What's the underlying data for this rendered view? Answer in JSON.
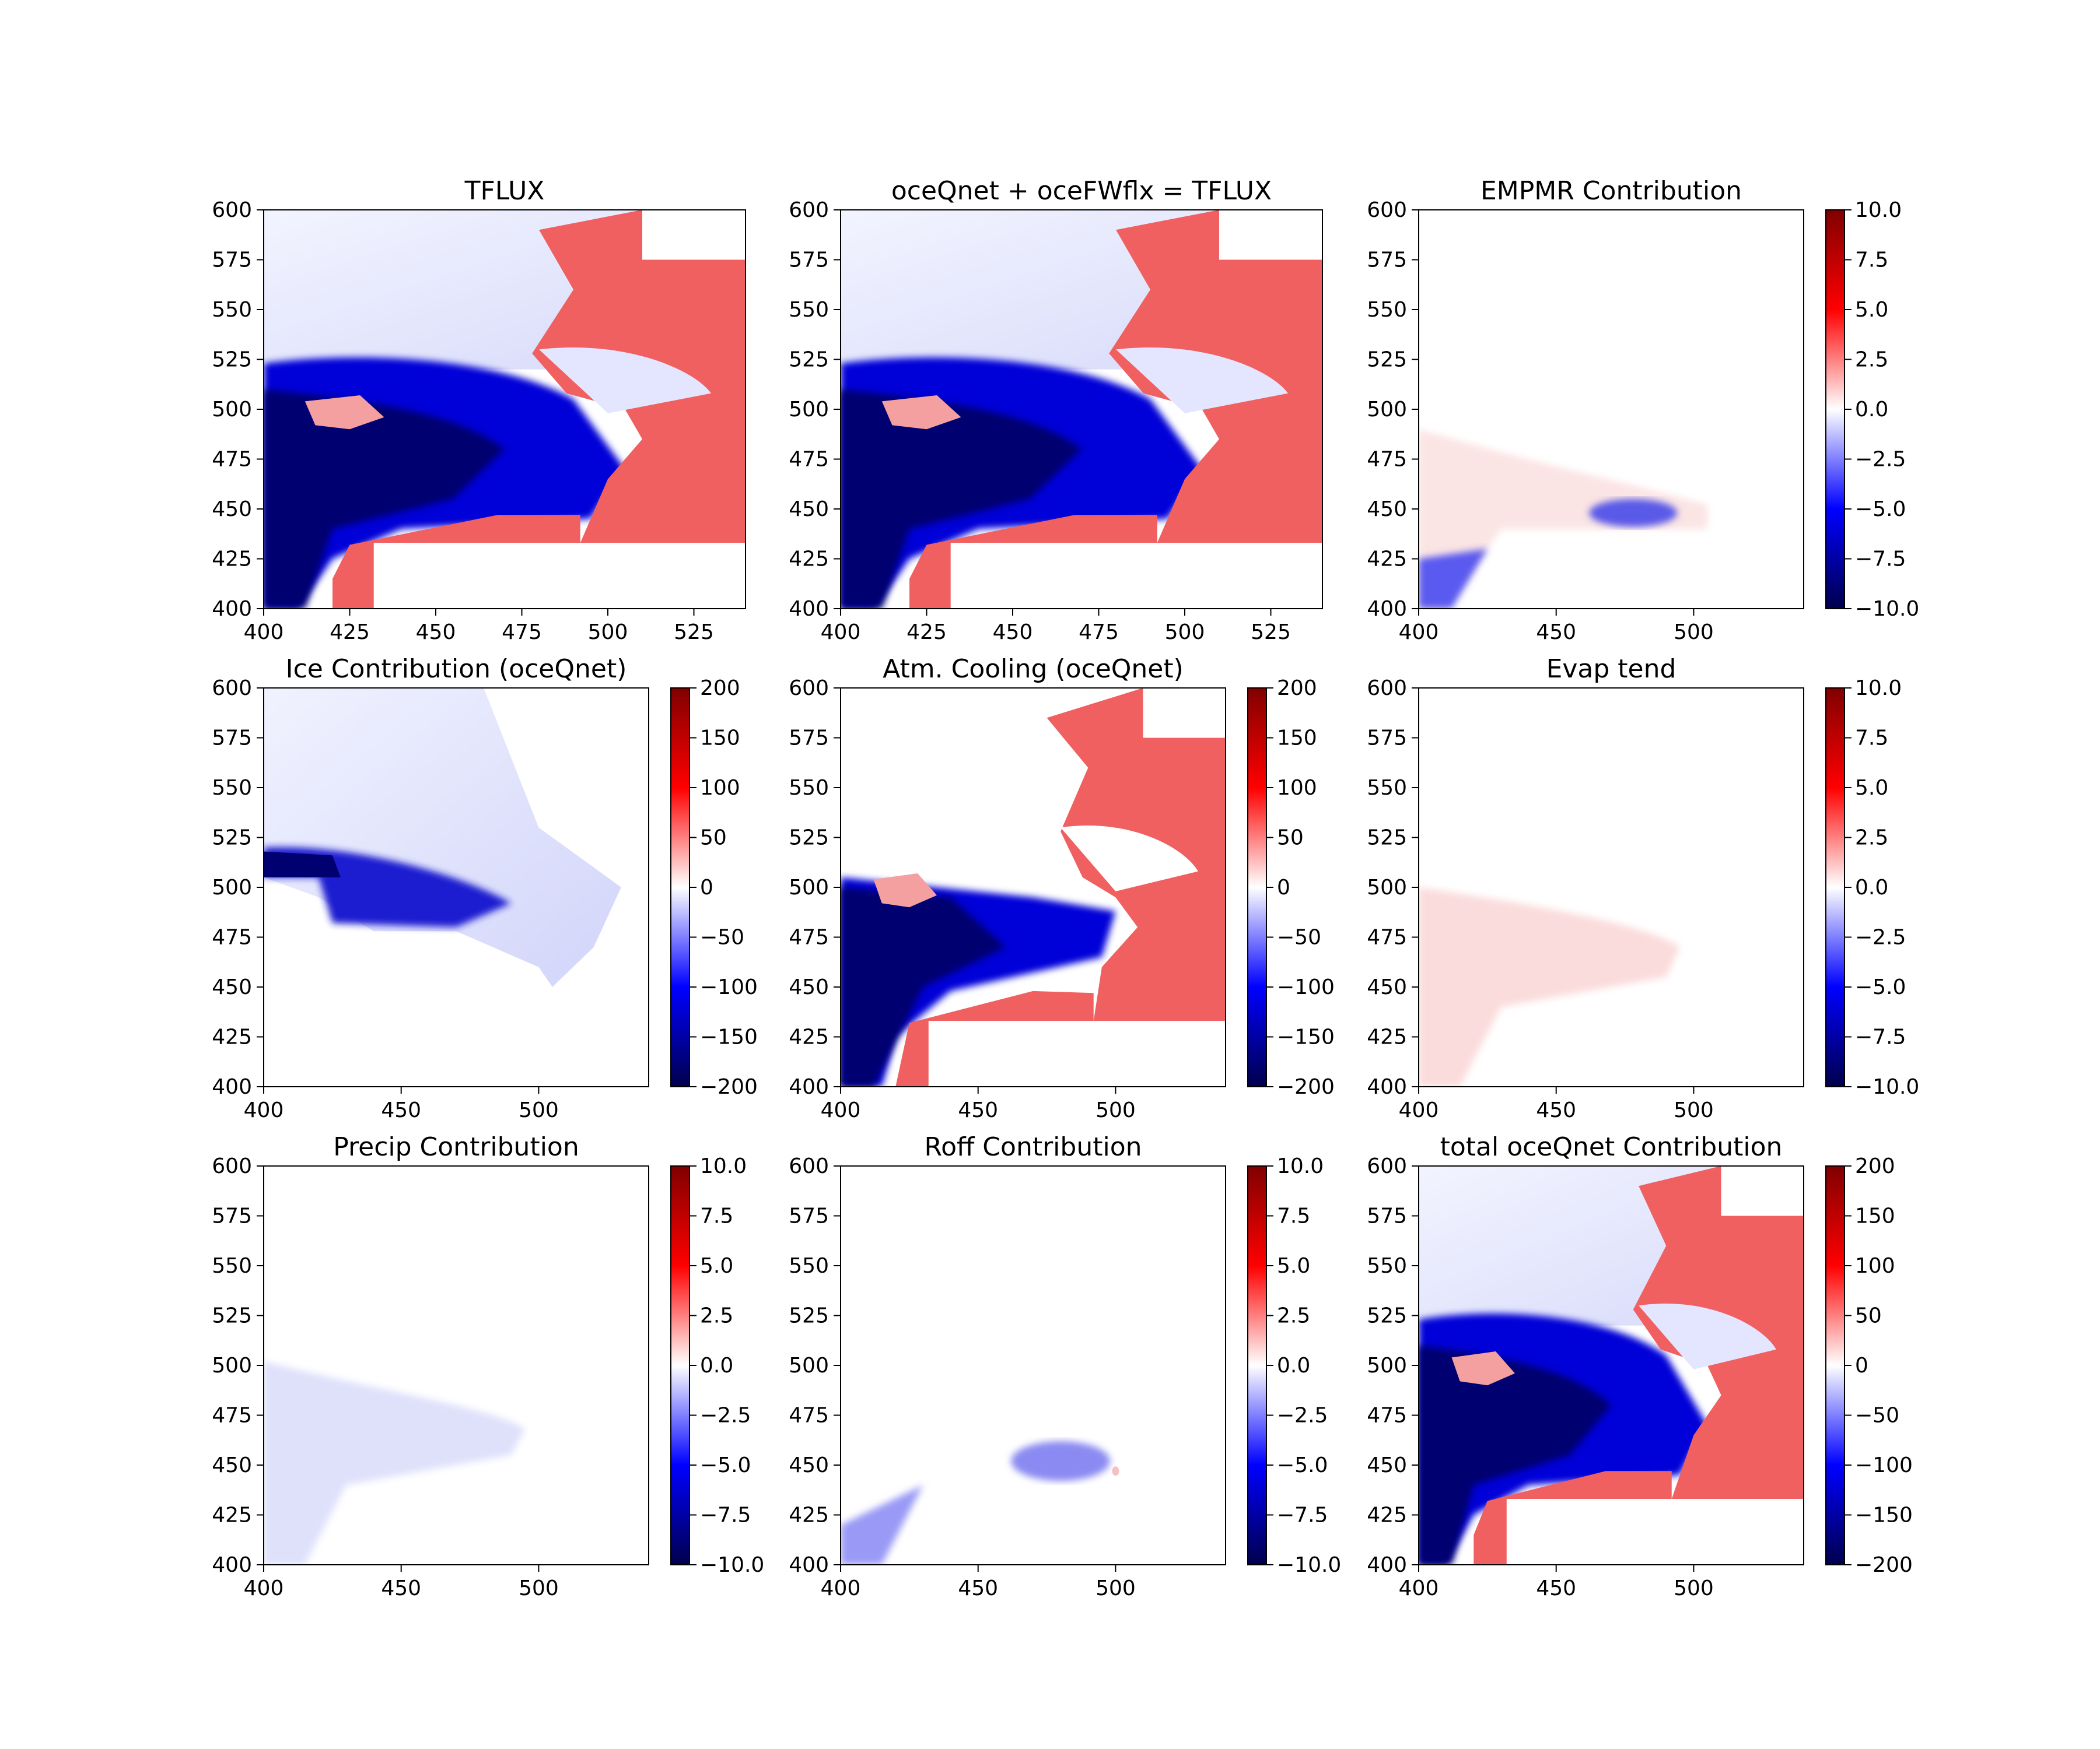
{
  "figure": {
    "panels": [
      {
        "id": "tflux",
        "title": "TFLUX",
        "xticks": [
          "400",
          "425",
          "450",
          "475",
          "500",
          "525"
        ],
        "yticks": [
          "400",
          "425",
          "450",
          "475",
          "500",
          "525",
          "550",
          "575",
          "600"
        ],
        "colorbar": null
      },
      {
        "id": "oceqnet-plus-ocefwflx",
        "title": "oceQnet + oceFWflx = TFLUX",
        "xticks": [
          "400",
          "425",
          "450",
          "475",
          "500",
          "525"
        ],
        "yticks": [
          "400",
          "425",
          "450",
          "475",
          "500",
          "525",
          "550",
          "575",
          "600"
        ],
        "colorbar": null
      },
      {
        "id": "empmr-contribution",
        "title": "EMPMR Contribution",
        "xticks": [
          "400",
          "450",
          "500"
        ],
        "yticks": [
          "400",
          "425",
          "450",
          "475",
          "500",
          "525",
          "550",
          "575",
          "600"
        ],
        "colorbar": [
          "−10.0",
          "−7.5",
          "−5.0",
          "−2.5",
          "0.0",
          "2.5",
          "5.0",
          "7.5",
          "10.0"
        ]
      },
      {
        "id": "ice-contribution",
        "title": "Ice Contribution (oceQnet)",
        "xticks": [
          "400",
          "450",
          "500"
        ],
        "yticks": [
          "400",
          "425",
          "450",
          "475",
          "500",
          "525",
          "550",
          "575",
          "600"
        ],
        "colorbar": [
          "−200",
          "−150",
          "−100",
          "−50",
          "0",
          "50",
          "100",
          "150",
          "200"
        ]
      },
      {
        "id": "atm-cooling",
        "title": "Atm. Cooling (oceQnet)",
        "xticks": [
          "400",
          "450",
          "500"
        ],
        "yticks": [
          "400",
          "425",
          "450",
          "475",
          "500",
          "525",
          "550",
          "575",
          "600"
        ],
        "colorbar": [
          "−200",
          "−150",
          "−100",
          "−50",
          "0",
          "50",
          "100",
          "150",
          "200"
        ]
      },
      {
        "id": "evap-tend",
        "title": "Evap tend",
        "xticks": [
          "400",
          "450",
          "500"
        ],
        "yticks": [
          "400",
          "425",
          "450",
          "475",
          "500",
          "525",
          "550",
          "575",
          "600"
        ],
        "colorbar": [
          "−10.0",
          "−7.5",
          "−5.0",
          "−2.5",
          "0.0",
          "2.5",
          "5.0",
          "7.5",
          "10.0"
        ]
      },
      {
        "id": "precip-contribution",
        "title": "Precip Contribution",
        "xticks": [
          "400",
          "450",
          "500"
        ],
        "yticks": [
          "400",
          "425",
          "450",
          "475",
          "500",
          "525",
          "550",
          "575",
          "600"
        ],
        "colorbar": [
          "−10.0",
          "−7.5",
          "−5.0",
          "−2.5",
          "0.0",
          "2.5",
          "5.0",
          "7.5",
          "10.0"
        ]
      },
      {
        "id": "roff-contribution",
        "title": "Roff Contribution",
        "xticks": [
          "400",
          "450",
          "500"
        ],
        "yticks": [
          "400",
          "425",
          "450",
          "475",
          "500",
          "525",
          "550",
          "575",
          "600"
        ],
        "colorbar": [
          "−10.0",
          "−7.5",
          "−5.0",
          "−2.5",
          "0.0",
          "2.5",
          "5.0",
          "7.5",
          "10.0"
        ]
      },
      {
        "id": "total-oceqnet-contribution",
        "title": "total oceQnet Contribution",
        "xticks": [
          "400",
          "450",
          "500"
        ],
        "yticks": [
          "400",
          "425",
          "450",
          "475",
          "500",
          "525",
          "550",
          "575",
          "600"
        ],
        "colorbar": [
          "−200",
          "−150",
          "−100",
          "−50",
          "0",
          "50",
          "100",
          "150",
          "200"
        ]
      }
    ],
    "colormap": {
      "low": "#00004c",
      "mid_low": "#0000ff",
      "mid": "#ffffff",
      "mid_high": "#ff0000",
      "high": "#800000"
    }
  },
  "chart_data": [
    {
      "type": "heatmap",
      "title": "TFLUX",
      "xlim": [
        400,
        540
      ],
      "ylim": [
        400,
        600
      ],
      "colorbar": false
    },
    {
      "type": "heatmap",
      "title": "oceQnet + oceFWflx = TFLUX",
      "xlim": [
        400,
        540
      ],
      "ylim": [
        400,
        600
      ],
      "colorbar": false
    },
    {
      "type": "heatmap",
      "title": "EMPMR Contribution",
      "xlim": [
        400,
        540
      ],
      "ylim": [
        400,
        600
      ],
      "clim": [
        -10,
        10
      ]
    },
    {
      "type": "heatmap",
      "title": "Ice Contribution (oceQnet)",
      "xlim": [
        400,
        540
      ],
      "ylim": [
        400,
        600
      ],
      "clim": [
        -200,
        200
      ]
    },
    {
      "type": "heatmap",
      "title": "Atm. Cooling (oceQnet)",
      "xlim": [
        400,
        540
      ],
      "ylim": [
        400,
        600
      ],
      "clim": [
        -200,
        200
      ]
    },
    {
      "type": "heatmap",
      "title": "Evap tend",
      "xlim": [
        400,
        540
      ],
      "ylim": [
        400,
        600
      ],
      "clim": [
        -10,
        10
      ]
    },
    {
      "type": "heatmap",
      "title": "Precip Contribution",
      "xlim": [
        400,
        540
      ],
      "ylim": [
        400,
        600
      ],
      "clim": [
        -10,
        10
      ]
    },
    {
      "type": "heatmap",
      "title": "Roff Contribution",
      "xlim": [
        400,
        540
      ],
      "ylim": [
        400,
        600
      ],
      "clim": [
        -10,
        10
      ]
    },
    {
      "type": "heatmap",
      "title": "total oceQnet Contribution",
      "xlim": [
        400,
        540
      ],
      "ylim": [
        400,
        600
      ],
      "clim": [
        -200,
        200
      ]
    }
  ]
}
